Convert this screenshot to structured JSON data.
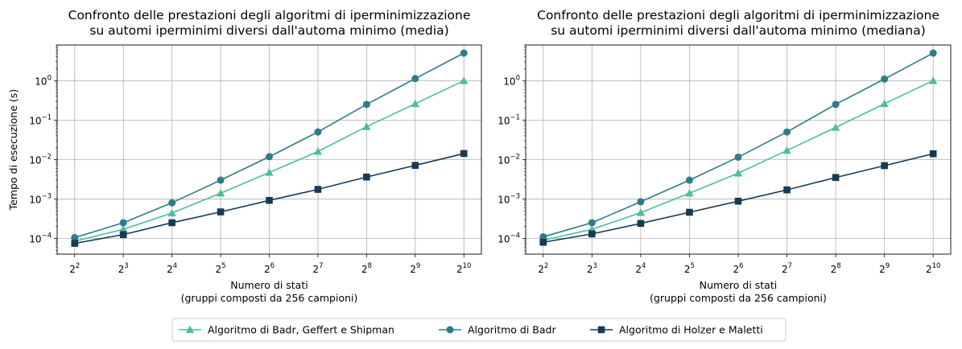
{
  "chart_data": [
    {
      "type": "line",
      "title": [
        "Confronto delle prestazioni degli algoritmi di iperminimizzazione",
        "su automi iperminimi diversi dall'automa minimo (media)"
      ],
      "xlabel": [
        "Numero di stati",
        "(gruppi composti da 256 campioni)"
      ],
      "ylabel": "Tempo di esecuzione (s)",
      "x_scale": "log2",
      "y_scale": "log10",
      "grid": true,
      "x": [
        4,
        8,
        16,
        32,
        64,
        128,
        256,
        512,
        1024
      ],
      "x_ticks": [
        {
          "base": "2",
          "exp": "2"
        },
        {
          "base": "2",
          "exp": "3"
        },
        {
          "base": "2",
          "exp": "4"
        },
        {
          "base": "2",
          "exp": "5"
        },
        {
          "base": "2",
          "exp": "6"
        },
        {
          "base": "2",
          "exp": "7"
        },
        {
          "base": "2",
          "exp": "8"
        },
        {
          "base": "2",
          "exp": "9"
        },
        {
          "base": "2",
          "exp": "10"
        }
      ],
      "y_ticks": [
        {
          "base": "10",
          "exp": "−4"
        },
        {
          "base": "10",
          "exp": "−3"
        },
        {
          "base": "10",
          "exp": "−2"
        },
        {
          "base": "10",
          "exp": "−1"
        },
        {
          "base": "10",
          "exp": "0"
        }
      ],
      "ylim": [
        4e-05,
        8
      ],
      "series": [
        {
          "name": "Algoritmo di Badr, Geffert e Shipman",
          "marker": "triangle",
          "color": "#4bbf9b",
          "values": [
            8.5e-05,
            0.00017,
            0.00044,
            0.0014,
            0.0047,
            0.016,
            0.068,
            0.26,
            1.0
          ]
        },
        {
          "name": "Algoritmo di Badr",
          "marker": "circle",
          "color": "#2e7b8a",
          "values": [
            0.000105,
            0.00025,
            0.0008,
            0.003,
            0.0118,
            0.05,
            0.25,
            1.13,
            5.0
          ]
        },
        {
          "name": "Algoritmo di Holzer e Maletti",
          "marker": "square",
          "color": "#163a55",
          "values": [
            7.5e-05,
            0.000125,
            0.00025,
            0.00047,
            0.00092,
            0.00175,
            0.0036,
            0.0071,
            0.0142
          ]
        }
      ]
    },
    {
      "type": "line",
      "title": [
        "Confronto delle prestazioni degli algoritmi di iperminimizzazione",
        "su automi iperminimi diversi dall'automa minimo (mediana)"
      ],
      "xlabel": [
        "Numero di stati",
        "(gruppi composti da 256 campioni)"
      ],
      "ylabel": "",
      "x_scale": "log2",
      "y_scale": "log10",
      "grid": true,
      "x": [
        4,
        8,
        16,
        32,
        64,
        128,
        256,
        512,
        1024
      ],
      "x_ticks": [
        {
          "base": "2",
          "exp": "2"
        },
        {
          "base": "2",
          "exp": "3"
        },
        {
          "base": "2",
          "exp": "4"
        },
        {
          "base": "2",
          "exp": "5"
        },
        {
          "base": "2",
          "exp": "6"
        },
        {
          "base": "2",
          "exp": "7"
        },
        {
          "base": "2",
          "exp": "8"
        },
        {
          "base": "2",
          "exp": "9"
        },
        {
          "base": "2",
          "exp": "10"
        }
      ],
      "y_ticks": [
        {
          "base": "10",
          "exp": "−4"
        },
        {
          "base": "10",
          "exp": "−3"
        },
        {
          "base": "10",
          "exp": "−2"
        },
        {
          "base": "10",
          "exp": "−1"
        },
        {
          "base": "10",
          "exp": "0"
        }
      ],
      "ylim": [
        4e-05,
        8
      ],
      "series": [
        {
          "name": "Algoritmo di Badr, Geffert e Shipman",
          "marker": "triangle",
          "color": "#4bbf9b",
          "values": [
            9e-05,
            0.00017,
            0.00045,
            0.0014,
            0.0045,
            0.017,
            0.065,
            0.26,
            1.0
          ]
        },
        {
          "name": "Algoritmo di Badr",
          "marker": "circle",
          "color": "#2e7b8a",
          "values": [
            0.00011,
            0.00025,
            0.00085,
            0.003,
            0.0115,
            0.05,
            0.25,
            1.1,
            5.0
          ]
        },
        {
          "name": "Algoritmo di Holzer e Maletti",
          "marker": "square",
          "color": "#163a55",
          "values": [
            8e-05,
            0.00013,
            0.00024,
            0.00046,
            0.00088,
            0.0017,
            0.0035,
            0.007,
            0.014
          ]
        }
      ]
    }
  ],
  "legend": {
    "placement": "bottom-center",
    "items": [
      "Algoritmo di Badr, Geffert e Shipman",
      "Algoritmo di Badr",
      "Algoritmo di Holzer e Maletti"
    ]
  }
}
